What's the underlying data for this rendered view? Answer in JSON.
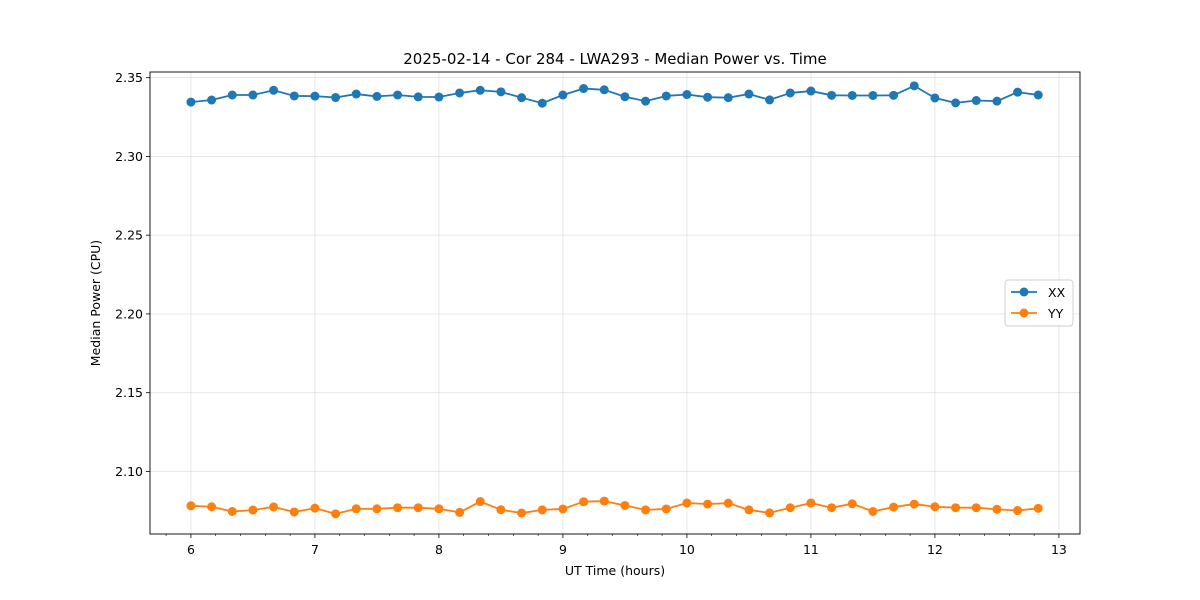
{
  "chart_data": {
    "type": "line",
    "title": "2025-02-14 - Cor 284 - LWA293 - Median Power vs. Time",
    "xlabel": "UT Time (hours)",
    "ylabel": "Median Power (CPU)",
    "xlim": [
      5.67,
      13.17
    ],
    "ylim": [
      2.0603,
      2.3536
    ],
    "xticks": [
      6,
      7,
      8,
      9,
      10,
      11,
      12,
      13
    ],
    "xtick_labels": [
      "6",
      "7",
      "8",
      "9",
      "10",
      "11",
      "12",
      "13"
    ],
    "yticks": [
      2.1,
      2.15,
      2.2,
      2.25,
      2.3,
      2.35
    ],
    "ytick_labels": [
      "2.10",
      "2.15",
      "2.20",
      "2.25",
      "2.30",
      "2.35"
    ],
    "grid": true,
    "legend_position": "center-right",
    "x": [
      6.0,
      6.1667,
      6.3333,
      6.5,
      6.6667,
      6.8333,
      7.0,
      7.1667,
      7.3333,
      7.5,
      7.6667,
      7.8333,
      8.0,
      8.1667,
      8.3333,
      8.5,
      8.6667,
      8.8333,
      9.0,
      9.1667,
      9.3333,
      9.5,
      9.6667,
      9.8333,
      10.0,
      10.1667,
      10.3333,
      10.5,
      10.6667,
      10.8333,
      11.0,
      11.1667,
      11.3333,
      11.5,
      11.6667,
      11.8333,
      12.0,
      12.1667,
      12.3333,
      12.5,
      12.6667,
      12.8333
    ],
    "series": [
      {
        "name": "XX",
        "color": "#1f77b4",
        "values": [
          2.3345,
          2.3358,
          2.339,
          2.339,
          2.342,
          2.3384,
          2.3383,
          2.3374,
          2.3396,
          2.3381,
          2.339,
          2.3378,
          2.3377,
          2.3403,
          2.342,
          2.341,
          2.3373,
          2.3338,
          2.339,
          2.3431,
          2.3423,
          2.3379,
          2.3351,
          2.3384,
          2.3393,
          2.3376,
          2.3373,
          2.3396,
          2.3359,
          2.3403,
          2.3415,
          2.3388,
          2.3387,
          2.3387,
          2.3388,
          2.3448,
          2.3371,
          2.334,
          2.3355,
          2.3351,
          2.3408,
          2.339
        ]
      },
      {
        "name": "YY",
        "color": "#ff7f0e",
        "values": [
          2.0782,
          2.0776,
          2.0746,
          2.0755,
          2.0775,
          2.0743,
          2.0767,
          2.0731,
          2.0763,
          2.0763,
          2.077,
          2.077,
          2.0763,
          2.074,
          2.0809,
          2.0757,
          2.0736,
          2.0756,
          2.0762,
          2.0808,
          2.0812,
          2.0784,
          2.0756,
          2.0762,
          2.08,
          2.0793,
          2.0799,
          2.0756,
          2.0737,
          2.077,
          2.08,
          2.077,
          2.0795,
          2.0746,
          2.0774,
          2.0793,
          2.0776,
          2.077,
          2.077,
          2.076,
          2.0752,
          2.0766
        ]
      }
    ]
  }
}
